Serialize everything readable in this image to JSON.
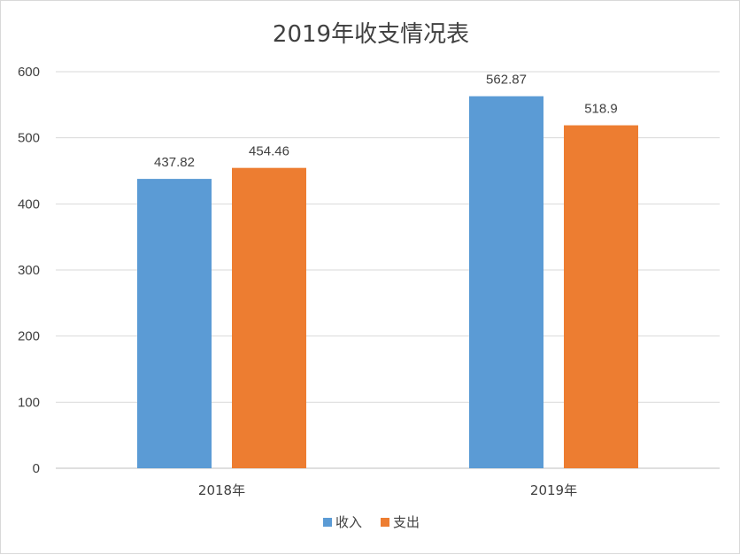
{
  "chart_data": {
    "type": "bar",
    "title": "2019年收支情况表",
    "categories": [
      "2018年",
      "2019年"
    ],
    "series": [
      {
        "name": "收入",
        "color": "#5b9bd5",
        "values": [
          437.82,
          562.87
        ],
        "labels": [
          "437.82",
          "562.87"
        ]
      },
      {
        "name": "支出",
        "color": "#ed7d31",
        "values": [
          454.46,
          518.9
        ],
        "labels": [
          "454.46",
          "518.9"
        ]
      }
    ],
    "ylim": [
      0,
      600
    ],
    "yticks": [
      0,
      100,
      200,
      300,
      400,
      500,
      600
    ],
    "grid": true,
    "legend_position": "bottom"
  }
}
